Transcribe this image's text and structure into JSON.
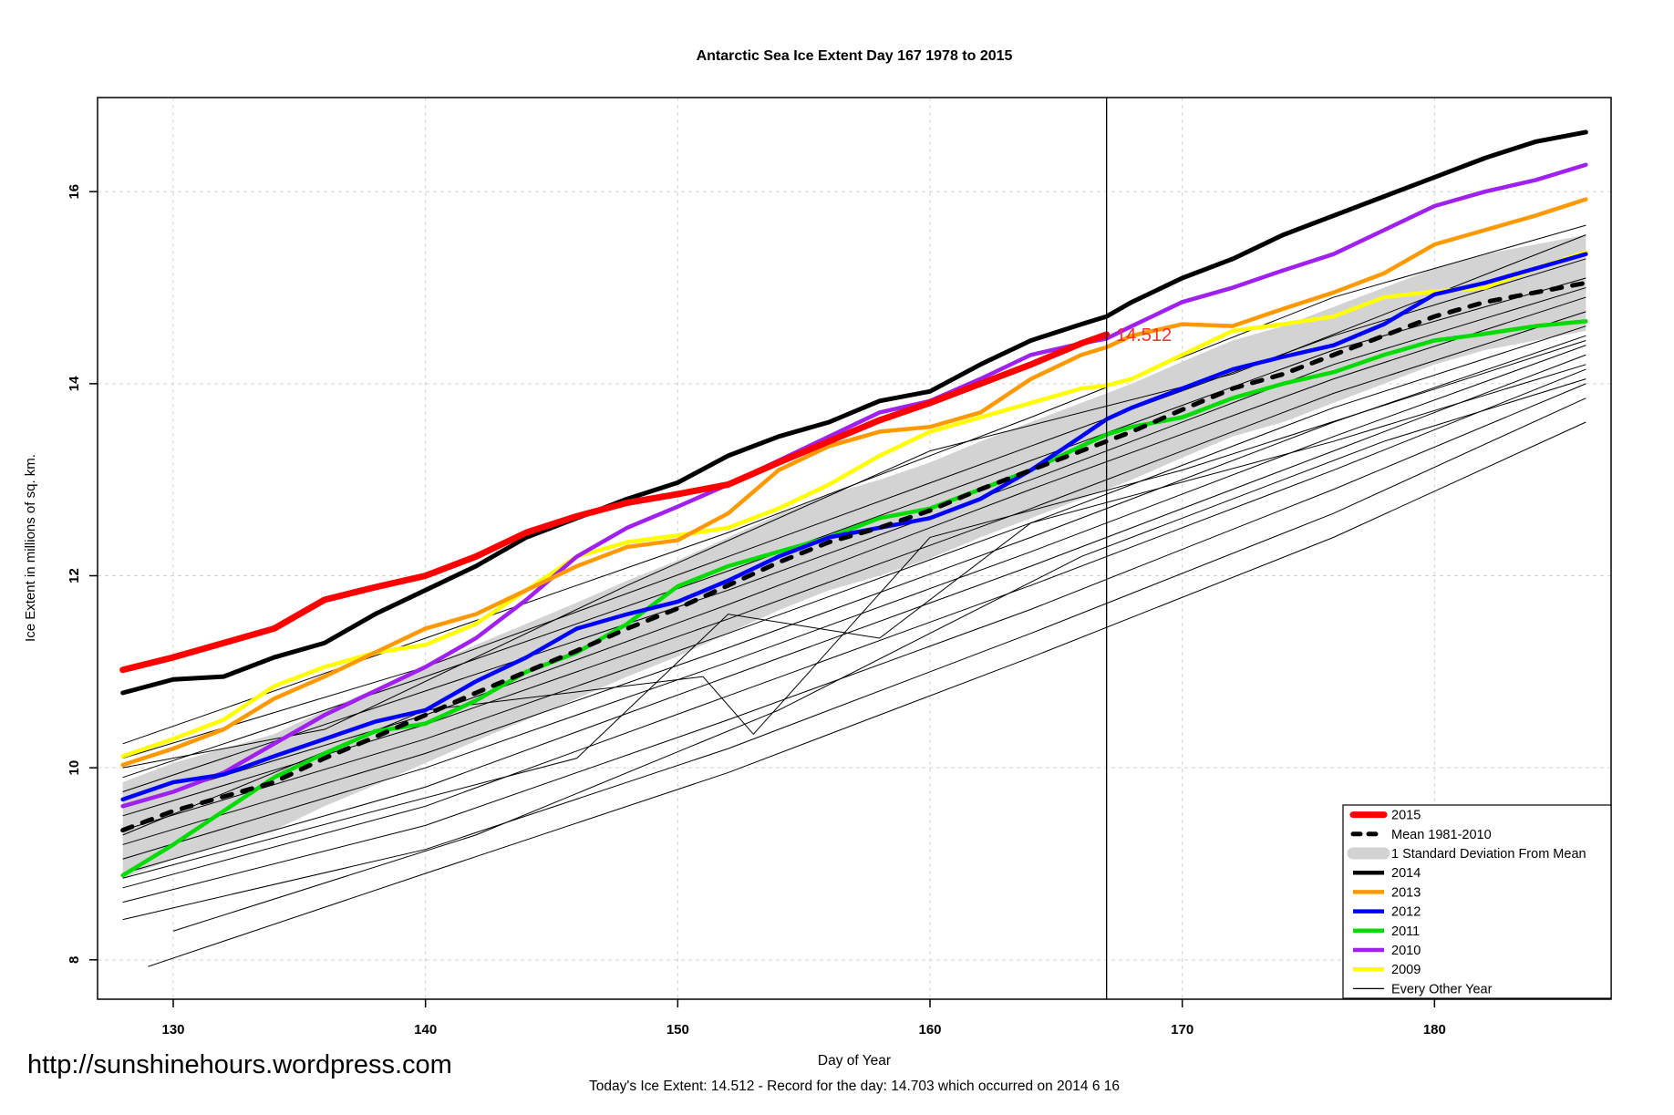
{
  "title": "Antarctic Sea Ice Extent Day 167 1978 to 2015",
  "footer": {
    "url": "http://sunshinehours.wordpress.com",
    "xlabel": "Day of Year",
    "status": "Today's Ice Extent: 14.512  - Record for the day: 14.703 which occurred on 2014 6 16"
  },
  "annotation": {
    "text": "14.512",
    "color": "#FF2F2F",
    "day": 167.35,
    "value": 14.52
  },
  "legend": {
    "items": [
      {
        "label": "2015",
        "color": "#FF0000",
        "style": "thick"
      },
      {
        "label": "Mean 1981-2010",
        "color": "#000000",
        "style": "dashed"
      },
      {
        "label": "1 Standard Deviation From Mean",
        "color": "#D3D3D3",
        "style": "band"
      },
      {
        "label": "2014",
        "color": "#000000",
        "style": "line"
      },
      {
        "label": "2013",
        "color": "#FF9900",
        "style": "line"
      },
      {
        "label": "2012",
        "color": "#0000FF",
        "style": "line"
      },
      {
        "label": "2011",
        "color": "#00DB00",
        "style": "line"
      },
      {
        "label": "2010",
        "color": "#A020F0",
        "style": "line"
      },
      {
        "label": "2009",
        "color": "#FFFF00",
        "style": "line"
      },
      {
        "label": "Every Other Year",
        "color": "#000000",
        "style": "thin"
      }
    ]
  },
  "chart_data": {
    "type": "line",
    "title": "Antarctic Sea Ice Extent Day 167 1978 to 2015",
    "xlabel": "Day of Year",
    "ylabel": "Ice Extent in millions of sq. km.",
    "xlim": [
      127,
      187
    ],
    "ylim": [
      7.59,
      16.98
    ],
    "xticks": [
      130,
      140,
      150,
      160,
      170,
      180
    ],
    "yticks": [
      8,
      10,
      12,
      14,
      16
    ],
    "grid": true,
    "legend_position": "bottom-right",
    "marker_day": 167,
    "grid_color": "#D3D3D3",
    "days": [
      128,
      130,
      132,
      134,
      136,
      138,
      140,
      142,
      144,
      146,
      148,
      150,
      152,
      154,
      156,
      158,
      160,
      162,
      164,
      166,
      167,
      168,
      170,
      172,
      174,
      176,
      178,
      180,
      182,
      184,
      186
    ],
    "band": {
      "name": "1 Standard Deviation From Mean",
      "color": "#D3D3D3",
      "upper": [
        9.85,
        10.05,
        10.2,
        10.35,
        10.6,
        10.82,
        11.05,
        11.28,
        11.5,
        11.72,
        11.95,
        12.16,
        12.4,
        12.64,
        12.85,
        13.0,
        13.18,
        13.4,
        13.6,
        13.8,
        13.9,
        14.0,
        14.23,
        14.45,
        14.6,
        14.8,
        15.0,
        15.2,
        15.35,
        15.45,
        15.55
      ],
      "lower": [
        8.85,
        9.05,
        9.2,
        9.35,
        9.6,
        9.82,
        10.05,
        10.28,
        10.5,
        10.72,
        10.95,
        11.16,
        11.4,
        11.64,
        11.85,
        12.0,
        12.18,
        12.4,
        12.6,
        12.8,
        12.9,
        13.0,
        13.23,
        13.45,
        13.6,
        13.8,
        14.0,
        14.2,
        14.35,
        14.45,
        14.55
      ]
    },
    "series": [
      {
        "name": "2009",
        "color": "#FFFF00",
        "width": 4.5,
        "values": [
          10.12,
          10.3,
          10.5,
          10.85,
          11.05,
          11.2,
          11.28,
          11.5,
          11.85,
          12.2,
          12.35,
          12.42,
          12.5,
          12.7,
          12.95,
          13.25,
          13.5,
          13.65,
          13.8,
          13.95,
          13.98,
          14.05,
          14.3,
          14.55,
          14.62,
          14.7,
          14.9,
          14.96,
          15.0,
          15.2,
          15.37
        ]
      },
      {
        "name": "2010",
        "color": "#A020F0",
        "width": 4.5,
        "values": [
          9.6,
          9.75,
          9.95,
          10.25,
          10.55,
          10.8,
          11.05,
          11.35,
          11.75,
          12.2,
          12.5,
          12.72,
          12.95,
          13.2,
          13.45,
          13.7,
          13.82,
          14.05,
          14.3,
          14.42,
          14.47,
          14.6,
          14.85,
          15.0,
          15.18,
          15.35,
          15.6,
          15.85,
          16.0,
          16.12,
          16.28
        ]
      },
      {
        "name": "2011",
        "color": "#00DB00",
        "width": 4.5,
        "values": [
          8.88,
          9.2,
          9.55,
          9.9,
          10.15,
          10.38,
          10.46,
          10.7,
          11.0,
          11.2,
          11.5,
          11.89,
          12.1,
          12.25,
          12.4,
          12.6,
          12.7,
          12.9,
          13.1,
          13.35,
          13.47,
          13.55,
          13.65,
          13.85,
          14.0,
          14.12,
          14.3,
          14.45,
          14.52,
          14.6,
          14.65
        ]
      },
      {
        "name": "2012",
        "color": "#0000FF",
        "width": 4.5,
        "values": [
          9.67,
          9.85,
          9.93,
          10.12,
          10.3,
          10.48,
          10.6,
          10.9,
          11.15,
          11.45,
          11.6,
          11.73,
          11.95,
          12.2,
          12.4,
          12.5,
          12.6,
          12.8,
          13.1,
          13.45,
          13.63,
          13.75,
          13.95,
          14.15,
          14.28,
          14.4,
          14.62,
          14.93,
          15.05,
          15.2,
          15.35
        ]
      },
      {
        "name": "2013",
        "color": "#FF9900",
        "width": 4.5,
        "values": [
          10.03,
          10.2,
          10.4,
          10.72,
          10.95,
          11.2,
          11.45,
          11.6,
          11.85,
          12.1,
          12.3,
          12.37,
          12.65,
          13.1,
          13.35,
          13.5,
          13.55,
          13.7,
          14.05,
          14.3,
          14.38,
          14.5,
          14.62,
          14.6,
          14.78,
          14.95,
          15.15,
          15.45,
          15.6,
          15.75,
          15.92
        ]
      },
      {
        "name": "2014",
        "color": "#000000",
        "width": 5,
        "values": [
          10.78,
          10.92,
          10.95,
          11.15,
          11.3,
          11.6,
          11.85,
          12.1,
          12.4,
          12.6,
          12.8,
          12.97,
          13.25,
          13.45,
          13.6,
          13.82,
          13.92,
          14.2,
          14.45,
          14.62,
          14.7,
          14.85,
          15.1,
          15.3,
          15.55,
          15.75,
          15.95,
          16.15,
          16.35,
          16.52,
          16.62
        ]
      },
      {
        "name": "Mean 1981-2010",
        "color": "#000000",
        "width": 5,
        "dash": "11 12",
        "values": [
          9.35,
          9.55,
          9.7,
          9.85,
          10.1,
          10.32,
          10.55,
          10.78,
          11.0,
          11.22,
          11.45,
          11.66,
          11.9,
          12.14,
          12.35,
          12.5,
          12.68,
          12.9,
          13.1,
          13.3,
          13.4,
          13.5,
          13.73,
          13.95,
          14.1,
          14.3,
          14.5,
          14.7,
          14.85,
          14.95,
          15.05
        ]
      },
      {
        "name": "2015",
        "color": "#FF0000",
        "width": 7,
        "end_day": 167,
        "values": [
          11.02,
          11.15,
          11.3,
          11.45,
          11.75,
          11.88,
          12.0,
          12.2,
          12.45,
          12.62,
          12.76,
          12.85,
          12.95,
          13.18,
          13.4,
          13.62,
          13.8,
          14.0,
          14.2,
          14.42,
          14.512
        ]
      }
    ],
    "other_years": {
      "name": "Every Other Year",
      "color": "#000000",
      "width": 1,
      "lines": [
        [
          [
            128,
            10.25
          ],
          [
            140,
            11.35
          ],
          [
            152,
            12.45
          ],
          [
            164,
            13.65
          ],
          [
            176,
            14.9
          ],
          [
            186,
            15.65
          ]
        ],
        [
          [
            128,
            10.1
          ],
          [
            140,
            11.05
          ],
          [
            152,
            12.2
          ],
          [
            164,
            13.35
          ],
          [
            176,
            14.5
          ],
          [
            186,
            15.3
          ]
        ],
        [
          [
            128,
            9.9
          ],
          [
            140,
            10.95
          ],
          [
            152,
            12.05
          ],
          [
            164,
            13.2
          ],
          [
            176,
            14.35
          ],
          [
            186,
            15.1
          ]
        ],
        [
          [
            128,
            9.75
          ],
          [
            140,
            10.8
          ],
          [
            152,
            11.85
          ],
          [
            164,
            13.0
          ],
          [
            176,
            14.2
          ],
          [
            186,
            15.0
          ]
        ],
        [
          [
            128,
            9.6
          ],
          [
            140,
            10.55
          ],
          [
            152,
            11.7
          ],
          [
            164,
            12.9
          ],
          [
            176,
            14.05
          ],
          [
            186,
            14.9
          ]
        ],
        [
          [
            128,
            9.5
          ],
          [
            140,
            10.45
          ],
          [
            152,
            11.55
          ],
          [
            164,
            12.7
          ],
          [
            176,
            13.9
          ],
          [
            186,
            14.75
          ]
        ],
        [
          [
            128,
            9.35
          ],
          [
            140,
            10.3
          ],
          [
            152,
            11.4
          ],
          [
            164,
            12.55
          ],
          [
            176,
            13.75
          ],
          [
            186,
            14.6
          ]
        ],
        [
          [
            128,
            9.2
          ],
          [
            140,
            10.15
          ],
          [
            152,
            11.25
          ],
          [
            164,
            12.4
          ],
          [
            176,
            13.6
          ],
          [
            186,
            14.5
          ]
        ],
        [
          [
            128,
            9.05
          ],
          [
            140,
            10.0
          ],
          [
            152,
            11.1
          ],
          [
            164,
            12.25
          ],
          [
            176,
            13.45
          ],
          [
            186,
            14.4
          ]
        ],
        [
          [
            128,
            8.9
          ],
          [
            140,
            9.8
          ],
          [
            152,
            10.95
          ],
          [
            164,
            12.1
          ],
          [
            176,
            13.3
          ],
          [
            186,
            14.3
          ]
        ],
        [
          [
            128,
            8.75
          ],
          [
            140,
            9.6
          ],
          [
            152,
            10.75
          ],
          [
            164,
            11.9
          ],
          [
            176,
            13.1
          ],
          [
            186,
            14.15
          ]
        ],
        [
          [
            128,
            8.6
          ],
          [
            140,
            9.4
          ],
          [
            152,
            10.5
          ],
          [
            164,
            11.65
          ],
          [
            176,
            12.9
          ],
          [
            186,
            14.0
          ]
        ],
        [
          [
            128,
            8.42
          ],
          [
            140,
            9.15
          ],
          [
            152,
            10.2
          ],
          [
            164,
            11.4
          ],
          [
            176,
            12.65
          ],
          [
            186,
            13.85
          ]
        ],
        [
          [
            129,
            7.93
          ],
          [
            140,
            8.9
          ],
          [
            152,
            9.95
          ],
          [
            164,
            11.15
          ],
          [
            176,
            12.4
          ],
          [
            186,
            13.6
          ]
        ],
        [
          [
            128,
            9.3
          ],
          [
            140,
            10.6
          ],
          [
            151,
            10.95
          ],
          [
            153,
            10.35
          ],
          [
            160,
            12.4
          ],
          [
            170,
            13.1
          ],
          [
            186,
            14.45
          ]
        ],
        [
          [
            128,
            8.85
          ],
          [
            138,
            9.55
          ],
          [
            146,
            10.1
          ],
          [
            152,
            11.6
          ],
          [
            158,
            11.35
          ],
          [
            164,
            12.55
          ],
          [
            176,
            13.4
          ],
          [
            186,
            14.2
          ]
        ],
        [
          [
            128,
            10.0
          ],
          [
            136,
            10.4
          ],
          [
            148,
            11.9
          ],
          [
            160,
            13.3
          ],
          [
            172,
            14.1
          ],
          [
            186,
            15.55
          ]
        ],
        [
          [
            130,
            8.3
          ],
          [
            142,
            9.3
          ],
          [
            154,
            10.6
          ],
          [
            166,
            12.2
          ],
          [
            178,
            13.4
          ],
          [
            186,
            14.05
          ]
        ]
      ]
    }
  }
}
